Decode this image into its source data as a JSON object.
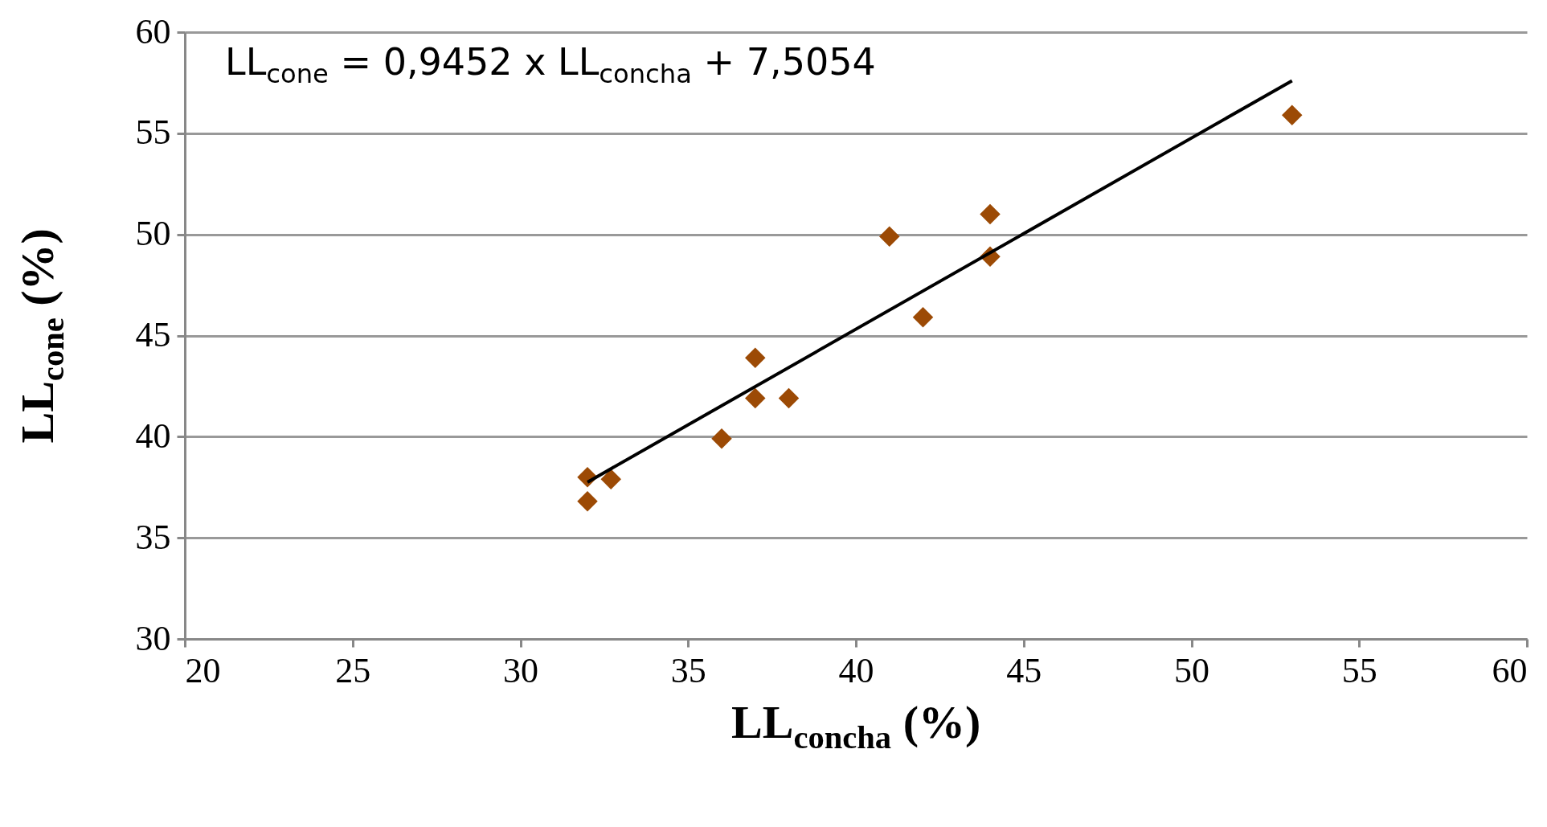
{
  "chart_data": {
    "type": "scatter",
    "xlabel": "LL$_{concha}$ (%)",
    "ylabel": "LL$_{cone}$ (%)",
    "annotations": [
      "LL$_{cone}$ = 0,9452 x LL$_{concha}$ + 7,5054"
    ],
    "x": [
      32,
      32,
      32.7,
      36,
      37,
      37,
      38,
      41,
      42,
      44,
      44,
      53
    ],
    "series": [
      {
        "color": "#9c4a05",
        "marker": "diamond",
        "values": [
          38,
          36.8,
          37.9,
          39.9,
          43.9,
          41.9,
          41.9,
          49.9,
          45.9,
          51,
          48.9,
          55.9
        ]
      },
      {
        "type": "line",
        "color": "#000000",
        "marker": "none",
        "x": [
          32,
          53
        ],
        "values": [
          37.75,
          57.6
        ]
      }
    ],
    "xlim": [
      20,
      60
    ],
    "ylim": [
      30,
      60
    ],
    "xticks": [
      20,
      25,
      30,
      35,
      40,
      45,
      50,
      55,
      60
    ],
    "yticks": [
      30,
      35,
      40,
      45,
      50,
      55,
      60
    ],
    "grid": "y"
  }
}
